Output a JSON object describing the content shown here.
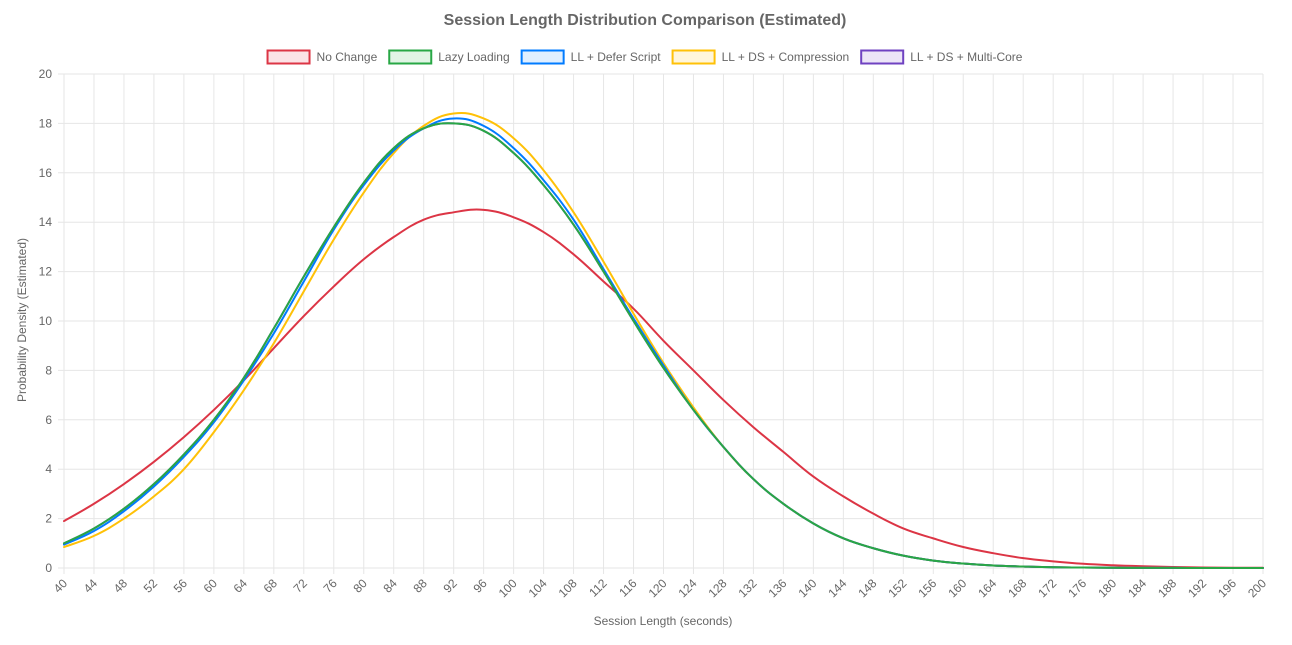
{
  "chart_data": {
    "type": "line",
    "title": "Session Length Distribution Comparison (Estimated)",
    "xlabel": "Session Length (seconds)",
    "ylabel": "Probability Density (Estimated)",
    "xlim": [
      40,
      200
    ],
    "ylim": [
      0,
      20
    ],
    "x_ticks": [
      40,
      44,
      48,
      52,
      56,
      60,
      64,
      68,
      72,
      76,
      80,
      84,
      88,
      92,
      96,
      100,
      104,
      108,
      112,
      116,
      120,
      124,
      128,
      132,
      136,
      140,
      144,
      148,
      152,
      156,
      160,
      164,
      168,
      172,
      176,
      180,
      184,
      188,
      192,
      196,
      200
    ],
    "y_ticks": [
      0,
      2,
      4,
      6,
      8,
      10,
      12,
      14,
      16,
      18,
      20
    ],
    "grid": true,
    "legend_position": "top",
    "x": [
      40,
      44,
      48,
      52,
      56,
      60,
      64,
      68,
      72,
      76,
      80,
      84,
      88,
      92,
      96,
      100,
      104,
      108,
      112,
      116,
      120,
      124,
      128,
      132,
      136,
      140,
      144,
      148,
      152,
      156,
      160,
      164,
      168,
      172,
      176,
      180,
      184,
      188,
      192,
      196,
      200
    ],
    "series": [
      {
        "name": "No Change",
        "color": "#dc3545",
        "fill": "#fbe3e6",
        "values": [
          1.9,
          2.6,
          3.4,
          4.3,
          5.3,
          6.4,
          7.6,
          8.9,
          10.2,
          11.4,
          12.5,
          13.4,
          14.1,
          14.4,
          14.5,
          14.2,
          13.6,
          12.7,
          11.6,
          10.5,
          9.2,
          8.0,
          6.8,
          5.7,
          4.7,
          3.7,
          2.9,
          2.2,
          1.6,
          1.2,
          0.85,
          0.6,
          0.4,
          0.27,
          0.17,
          0.11,
          0.07,
          0.04,
          0.02,
          0.01,
          0.01
        ]
      },
      {
        "name": "Lazy Loading",
        "color": "#28a745",
        "fill": "#e1f4e5",
        "values": [
          1.0,
          1.6,
          2.4,
          3.4,
          4.6,
          6.0,
          7.7,
          9.7,
          11.8,
          13.8,
          15.6,
          17.0,
          17.8,
          18.0,
          17.7,
          16.8,
          15.5,
          13.9,
          12.0,
          10.0,
          8.1,
          6.4,
          4.9,
          3.6,
          2.6,
          1.8,
          1.2,
          0.8,
          0.5,
          0.3,
          0.18,
          0.1,
          0.06,
          0.03,
          0.02,
          0.01,
          0.005,
          0.003,
          0.001,
          0.001,
          0.0
        ]
      },
      {
        "name": "LL + Defer Script",
        "color": "#007bff",
        "fill": "#e0efff",
        "values": [
          0.95,
          1.5,
          2.3,
          3.3,
          4.5,
          5.9,
          7.6,
          9.5,
          11.6,
          13.7,
          15.5,
          16.9,
          17.8,
          18.2,
          17.9,
          17.0,
          15.7,
          14.1,
          12.1,
          10.1,
          8.2,
          6.4,
          4.9,
          3.6,
          2.6,
          1.8,
          1.2,
          0.8,
          0.5,
          0.3,
          0.18,
          0.1,
          0.06,
          0.03,
          0.02,
          0.01,
          0.005,
          0.003,
          0.001,
          0.001,
          0.0
        ]
      },
      {
        "name": "LL + DS + Compression",
        "color": "#ffc107",
        "fill": "#fff6dc",
        "values": [
          0.85,
          1.3,
          2.0,
          2.9,
          4.0,
          5.5,
          7.2,
          9.1,
          11.2,
          13.3,
          15.2,
          16.8,
          17.9,
          18.4,
          18.2,
          17.4,
          16.1,
          14.4,
          12.4,
          10.3,
          8.3,
          6.5,
          4.9,
          3.6,
          2.6,
          1.8,
          1.2,
          0.8,
          0.5,
          0.3,
          0.18,
          0.1,
          0.06,
          0.03,
          0.02,
          0.01,
          0.005,
          0.003,
          0.001,
          0.001,
          0.0
        ]
      },
      {
        "name": "LL + DS + Multi-Core",
        "color": "#6f42c1",
        "fill": "#ece5f7",
        "values": [
          1.0,
          1.6,
          2.4,
          3.4,
          4.6,
          6.0,
          7.7,
          9.7,
          11.8,
          13.8,
          15.6,
          17.0,
          17.8,
          18.0,
          17.7,
          16.8,
          15.5,
          13.9,
          12.0,
          10.0,
          8.1,
          6.4,
          4.9,
          3.6,
          2.6,
          1.8,
          1.2,
          0.8,
          0.5,
          0.3,
          0.18,
          0.1,
          0.06,
          0.03,
          0.02,
          0.01,
          0.005,
          0.003,
          0.001,
          0.001,
          0.0
        ]
      }
    ]
  }
}
